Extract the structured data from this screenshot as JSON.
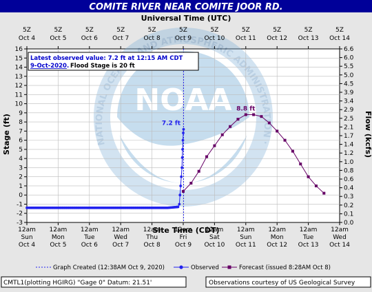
{
  "title": "COMITE RIVER NEAR COMITE JOOR RD.",
  "top_axis_label": "Universal Time (UTC)",
  "top_ticks": [
    {
      "day": "Oct 4",
      "z": "5Z"
    },
    {
      "day": "Oct 5",
      "z": "5Z"
    },
    {
      "day": "Oct 6",
      "z": "5Z"
    },
    {
      "day": "Oct 7",
      "z": "5Z"
    },
    {
      "day": "Oct 8",
      "z": "5Z"
    },
    {
      "day": "Oct 9",
      "z": "5Z"
    },
    {
      "day": "Oct 10",
      "z": "5Z"
    },
    {
      "day": "Oct 11",
      "z": "5Z"
    },
    {
      "day": "Oct 12",
      "z": "5Z"
    },
    {
      "day": "Oct 13",
      "z": "5Z"
    },
    {
      "day": "Oct 14",
      "z": "5Z"
    }
  ],
  "bottom_ticks": [
    {
      "time": "12am",
      "dow": "Sun",
      "date": "Oct 4"
    },
    {
      "time": "12am",
      "dow": "Mon",
      "date": "Oct 5"
    },
    {
      "time": "12am",
      "dow": "Tue",
      "date": "Oct 6"
    },
    {
      "time": "12am",
      "dow": "Wed",
      "date": "Oct 7"
    },
    {
      "time": "12am",
      "dow": "Thu",
      "date": "Oct 8"
    },
    {
      "time": "12am",
      "dow": "Fri",
      "date": "Oct 9"
    },
    {
      "time": "12am",
      "dow": "Sat",
      "date": "Oct 10"
    },
    {
      "time": "12am",
      "dow": "Sun",
      "date": "Oct 11"
    },
    {
      "time": "12am",
      "dow": "Mon",
      "date": "Oct 12"
    },
    {
      "time": "12am",
      "dow": "Tue",
      "date": "Oct 13"
    },
    {
      "time": "12am",
      "dow": "Wed",
      "date": "Oct 14"
    }
  ],
  "bottom_axis_label": "Site Time (CDT)",
  "left_axis_label": "Stage (ft)",
  "right_axis_label": "Flow (kcfs)",
  "stage_ticks": [
    16,
    15,
    14,
    13,
    12,
    11,
    10,
    9,
    8,
    7,
    6,
    5,
    4,
    3,
    2,
    1,
    0,
    -1,
    -2,
    -3
  ],
  "flow_ticks": [
    "6.6",
    "6.0",
    "5.5",
    "5.0",
    "4.5",
    "3.9",
    "3.4",
    "2.9",
    "2.5",
    "2.1",
    "1.7",
    "1.4",
    "1.2",
    "1.0",
    "0.8",
    "0.6",
    "0.4",
    "0.3",
    "0.2",
    "0.1",
    "0.0"
  ],
  "info_line1": "Latest observed value: 7.2 ft at 12:15 AM CDT",
  "info_date": "9-Oct-2020",
  "info_flood": "Flood Stage is 20 ft",
  "watermark_text": "NOAA",
  "watermark_ring": "NATIONAL OCEANIC AND ATMOSPHERIC ADMINISTRATION · U.S. DEPARTMENT OF COMMERCE",
  "legend": {
    "created": "Graph Created (12:38AM Oct 9, 2020)",
    "observed": "Observed",
    "forecast": "Forecast (issued 8:28AM Oct 8)"
  },
  "footer_left": "CMTL1(plotting HGIRG) \"Gage 0\" Datum: 21.51'",
  "footer_right": "Observations courtesy of US Geological Survey",
  "colors": {
    "observed": "#2222ee",
    "forecast": "#660066",
    "title_bg": "#000099",
    "plot_bg": "#ffffff",
    "grid": "#bbbbbb"
  },
  "chart_data": {
    "type": "line",
    "title": "COMITE RIVER NEAR COMITE JOOR RD.",
    "xlabel": "Site Time (CDT)",
    "ylabel": "Stage (ft)",
    "y2label": "Flow (kcfs)",
    "ylim": [
      -3,
      16
    ],
    "xlim": [
      "2020-10-04 00:00",
      "2020-10-14 00:00"
    ],
    "grid": true,
    "legend_position": "bottom",
    "series": [
      {
        "name": "Observed",
        "points": [
          [
            "2020-10-04 00:00",
            -1.4
          ],
          [
            "2020-10-05 00:00",
            -1.4
          ],
          [
            "2020-10-06 00:00",
            -1.4
          ],
          [
            "2020-10-07 00:00",
            -1.4
          ],
          [
            "2020-10-08 00:00",
            -1.4
          ],
          [
            "2020-10-08 12:00",
            -1.4
          ],
          [
            "2020-10-08 20:00",
            -1.3
          ],
          [
            "2020-10-08 21:00",
            -1.0
          ],
          [
            "2020-10-08 21:30",
            0.0
          ],
          [
            "2020-10-08 22:00",
            1.0
          ],
          [
            "2020-10-08 22:30",
            2.0
          ],
          [
            "2020-10-08 23:00",
            3.0
          ],
          [
            "2020-10-08 23:15",
            4.1
          ],
          [
            "2020-10-08 23:30",
            5.0
          ],
          [
            "2020-10-08 23:45",
            6.0
          ],
          [
            "2020-10-09 00:00",
            6.8
          ],
          [
            "2020-10-09 00:15",
            7.2
          ]
        ]
      },
      {
        "name": "Forecast (issued 8:28AM Oct 8)",
        "points": [
          [
            "2020-10-09 00:00",
            0.4
          ],
          [
            "2020-10-09 06:00",
            1.3
          ],
          [
            "2020-10-09 12:00",
            2.6
          ],
          [
            "2020-10-09 18:00",
            4.2
          ],
          [
            "2020-10-10 00:00",
            5.4
          ],
          [
            "2020-10-10 06:00",
            6.6
          ],
          [
            "2020-10-10 12:00",
            7.5
          ],
          [
            "2020-10-10 18:00",
            8.3
          ],
          [
            "2020-10-11 00:00",
            8.8
          ],
          [
            "2020-10-11 06:00",
            8.8
          ],
          [
            "2020-10-11 12:00",
            8.6
          ],
          [
            "2020-10-11 18:00",
            7.9
          ],
          [
            "2020-10-12 00:00",
            7.0
          ],
          [
            "2020-10-12 06:00",
            6.0
          ],
          [
            "2020-10-12 12:00",
            4.8
          ],
          [
            "2020-10-12 18:00",
            3.4
          ],
          [
            "2020-10-13 00:00",
            2.0
          ],
          [
            "2020-10-13 06:00",
            1.0
          ],
          [
            "2020-10-13 12:00",
            0.2
          ]
        ]
      }
    ],
    "annotations": [
      {
        "text": "7.2 ft",
        "x": "2020-10-09 00:15",
        "y": 7.2
      },
      {
        "text": "8.8 ft",
        "x": "2020-10-11 00:00",
        "y": 8.8
      }
    ]
  }
}
